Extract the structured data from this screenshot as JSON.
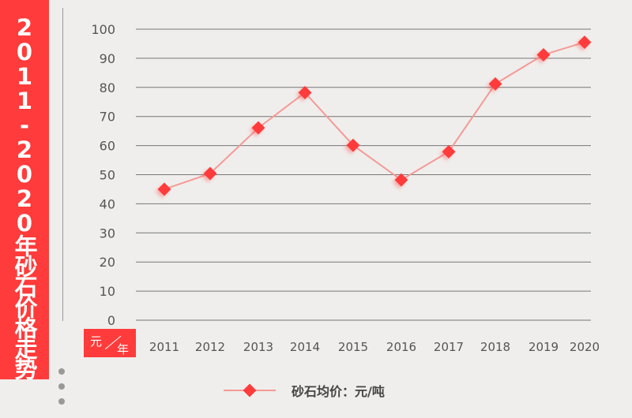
{
  "chart_data": {
    "type": "line",
    "title": "2011-2020年砂石价格走势",
    "unit_label_top": "元",
    "unit_label_bottom": "年",
    "categories": [
      "2011",
      "2012",
      "2013",
      "2014",
      "2015",
      "2016",
      "2017",
      "2018",
      "2019",
      "2020"
    ],
    "series": [
      {
        "name": "砂石均价：元/吨",
        "values": [
          45.0,
          50.4,
          66.1,
          78.2,
          60.1,
          48.2,
          57.9,
          81.2,
          91.2,
          95.5
        ],
        "color": "#ff3b3b",
        "line_color": "#f59a96",
        "marker": "diamond"
      }
    ],
    "ylim": [
      0,
      100
    ],
    "yticks": [
      0,
      10,
      20,
      30,
      40,
      50,
      60,
      70,
      80,
      90,
      100
    ],
    "grid": true,
    "legend_position": "bottom"
  }
}
